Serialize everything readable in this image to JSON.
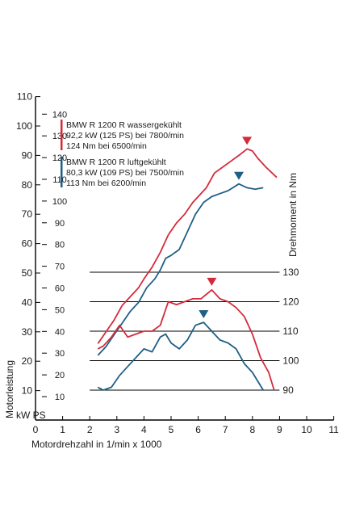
{
  "chart_data": {
    "type": "line",
    "x_unit_label": "Motordrehzahl in 1/min x 1000",
    "y_left_label": "Motorleistung",
    "y_left_units": "kW PS",
    "y_right_label": "Drehmoment in Nm",
    "x_ticks": [
      "0",
      "1",
      "2",
      "3",
      "4",
      "5",
      "6",
      "7",
      "8",
      "9",
      "10",
      "11"
    ],
    "x_range": [
      0,
      11
    ],
    "kw_ticks": [
      "10",
      "20",
      "30",
      "40",
      "50",
      "60",
      "70",
      "80",
      "90",
      "100",
      "110"
    ],
    "kw_range": [
      0,
      110
    ],
    "ps_ticks": [
      "10",
      "20",
      "30",
      "40",
      "50",
      "60",
      "70",
      "80",
      "90",
      "100",
      "110",
      "120",
      "130",
      "140"
    ],
    "nm_ticks": [
      "90",
      "100",
      "110",
      "120",
      "130"
    ],
    "nm_range": [
      90,
      130
    ],
    "legend": [
      {
        "color": "#d42b3a",
        "lines": [
          "BMW R 1200 R wassergekühlt",
          "92,2 kW (125 PS) bei 7800/min",
          "124 Nm bei 6500/min"
        ]
      },
      {
        "color": "#1f5f85",
        "lines": [
          "BMW  R 1200 R luftgekühlt",
          "80,3 kW (109 PS) bei 7500/min",
          "113 Nm bei 6200/min"
        ]
      }
    ],
    "series": [
      {
        "name": "BMW R 1200 R wassergekühlt",
        "kind": "power",
        "color": "#d42b3a",
        "peak_x": 7.8,
        "peak_y": 92.2,
        "points": [
          [
            2.3,
            26
          ],
          [
            2.6,
            30
          ],
          [
            2.9,
            34
          ],
          [
            3.2,
            39
          ],
          [
            3.5,
            42
          ],
          [
            3.8,
            45
          ],
          [
            4.0,
            48
          ],
          [
            4.3,
            52
          ],
          [
            4.6,
            57
          ],
          [
            4.9,
            63
          ],
          [
            5.2,
            67
          ],
          [
            5.5,
            70
          ],
          [
            5.8,
            74
          ],
          [
            6.0,
            76
          ],
          [
            6.3,
            79
          ],
          [
            6.6,
            84
          ],
          [
            6.9,
            86
          ],
          [
            7.2,
            88
          ],
          [
            7.5,
            90
          ],
          [
            7.8,
            92.2
          ],
          [
            8.0,
            91.5
          ],
          [
            8.2,
            89
          ],
          [
            8.5,
            86
          ],
          [
            8.9,
            82.5
          ]
        ]
      },
      {
        "name": "BMW  R 1200 R luftgekühlt",
        "kind": "power",
        "color": "#1f5f85",
        "peak_x": 7.5,
        "peak_y": 80.3,
        "points": [
          [
            2.3,
            22
          ],
          [
            2.6,
            25
          ],
          [
            2.9,
            29
          ],
          [
            3.2,
            33
          ],
          [
            3.5,
            37
          ],
          [
            3.8,
            40
          ],
          [
            4.1,
            45
          ],
          [
            4.4,
            48
          ],
          [
            4.6,
            51
          ],
          [
            4.8,
            55
          ],
          [
            5.0,
            56
          ],
          [
            5.3,
            58
          ],
          [
            5.6,
            64
          ],
          [
            5.9,
            70
          ],
          [
            6.2,
            74
          ],
          [
            6.5,
            76
          ],
          [
            6.8,
            77
          ],
          [
            7.1,
            78
          ],
          [
            7.5,
            80.3
          ],
          [
            7.8,
            79
          ],
          [
            8.1,
            78.5
          ],
          [
            8.4,
            79
          ]
        ]
      },
      {
        "name": "BMW R 1200 R wassergekühlt",
        "kind": "torque",
        "color": "#d42b3a",
        "peak_x": 6.5,
        "peak_y": 124,
        "points": [
          [
            2.3,
            104
          ],
          [
            2.5,
            105
          ],
          [
            2.8,
            108
          ],
          [
            3.1,
            112
          ],
          [
            3.4,
            108
          ],
          [
            3.7,
            109
          ],
          [
            4.0,
            110
          ],
          [
            4.3,
            110
          ],
          [
            4.6,
            112
          ],
          [
            4.9,
            120
          ],
          [
            5.2,
            119
          ],
          [
            5.5,
            120
          ],
          [
            5.8,
            121
          ],
          [
            6.1,
            121
          ],
          [
            6.5,
            124
          ],
          [
            6.8,
            121
          ],
          [
            7.1,
            120
          ],
          [
            7.4,
            118
          ],
          [
            7.7,
            115
          ],
          [
            8.0,
            109
          ],
          [
            8.3,
            101
          ],
          [
            8.6,
            96
          ],
          [
            8.8,
            90
          ]
        ]
      },
      {
        "name": "BMW  R 1200 R luftgekühlt",
        "kind": "torque",
        "color": "#1f5f85",
        "peak_x": 6.2,
        "peak_y": 113,
        "points": [
          [
            2.3,
            91
          ],
          [
            2.5,
            90
          ],
          [
            2.8,
            91
          ],
          [
            3.1,
            95
          ],
          [
            3.4,
            98
          ],
          [
            3.7,
            101
          ],
          [
            4.0,
            104
          ],
          [
            4.3,
            103
          ],
          [
            4.6,
            108
          ],
          [
            4.8,
            109
          ],
          [
            5.0,
            106
          ],
          [
            5.3,
            104
          ],
          [
            5.6,
            107
          ],
          [
            5.9,
            112
          ],
          [
            6.2,
            113
          ],
          [
            6.5,
            110
          ],
          [
            6.8,
            107
          ],
          [
            7.1,
            106
          ],
          [
            7.4,
            104
          ],
          [
            7.7,
            99
          ],
          [
            8.0,
            96
          ],
          [
            8.4,
            90
          ]
        ]
      }
    ]
  }
}
